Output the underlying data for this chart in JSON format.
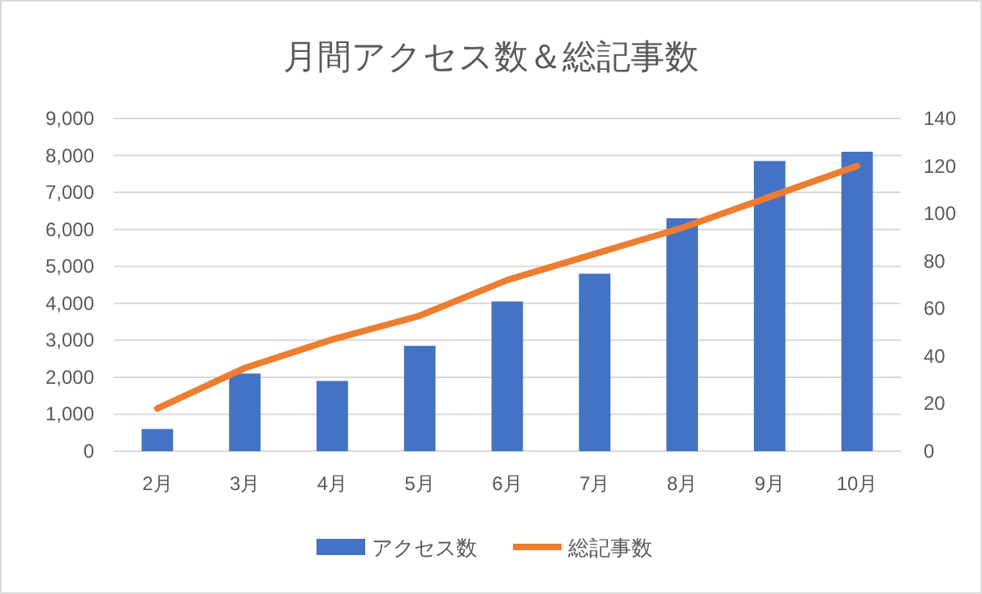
{
  "chart_data": {
    "type": "bar",
    "title": "月間アクセス数＆総記事数",
    "categories": [
      "2月",
      "3月",
      "4月",
      "5月",
      "6月",
      "7月",
      "8月",
      "9月",
      "10月"
    ],
    "series": [
      {
        "name": "アクセス数",
        "color": "#4472c4",
        "values": [
          600,
          2100,
          1900,
          2850,
          4050,
          4800,
          6300,
          7850,
          8100
        ]
      },
      {
        "name": "総記事数",
        "type": "line",
        "axis": "y2",
        "color": "#ed7d31",
        "values": [
          18,
          35,
          47,
          57,
          72,
          83,
          94,
          107,
          120
        ]
      }
    ],
    "ylim": [
      0,
      9000
    ],
    "yticks": [
      {
        "value": 0,
        "label": "0"
      },
      {
        "value": 1000,
        "label": "1,000"
      },
      {
        "value": 2000,
        "label": "2,000"
      },
      {
        "value": 3000,
        "label": "3,000"
      },
      {
        "value": 4000,
        "label": "4,000"
      },
      {
        "value": 5000,
        "label": "5,000"
      },
      {
        "value": 6000,
        "label": "6,000"
      },
      {
        "value": 7000,
        "label": "7,000"
      },
      {
        "value": 8000,
        "label": "8,000"
      },
      {
        "value": 9000,
        "label": "9,000"
      }
    ],
    "y2lim": [
      0,
      140
    ],
    "y2ticks": [
      0,
      20,
      40,
      60,
      80,
      100,
      120,
      140
    ],
    "grid": "y",
    "legend": "bottom"
  }
}
